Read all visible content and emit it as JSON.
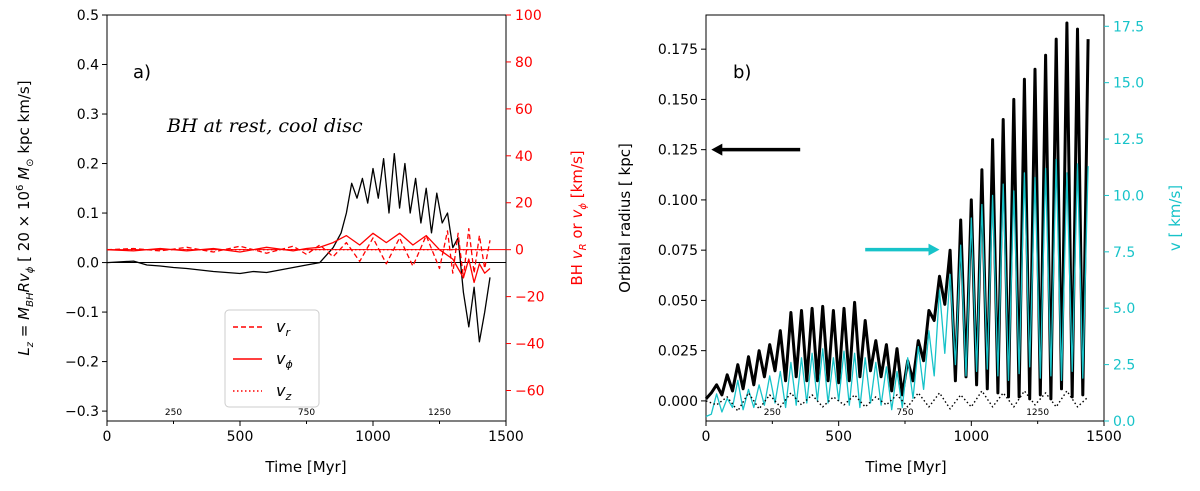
{
  "chart_data": [
    {
      "panel_label": "a)",
      "type": "line",
      "annotation": "BH at rest, cool disc",
      "xlabel": "Time [Myr]",
      "ylabel_left": "L_z = M_BH R v_ϕ [ 20 × 10^6 M_⊙ kpc km/s]",
      "ylabel_right": "BH v_R or v_ϕ [km/s]",
      "xlim": [
        0,
        1500
      ],
      "ylim_left": [
        -0.32,
        0.5
      ],
      "ylim_right": [
        -73,
        100
      ],
      "xticks_major": [
        "0",
        "500",
        "1000",
        "1500"
      ],
      "xticks_minor": [
        "250",
        "750",
        "1250"
      ],
      "yticks_left": [
        "−0.3",
        "−0.2",
        "−0.1",
        "0.0",
        "0.1",
        "0.2",
        "0.3",
        "0.4",
        "0.5"
      ],
      "yticks_right": [
        "−60",
        "−40",
        "−20",
        "0",
        "20",
        "40",
        "60",
        "80",
        "100"
      ],
      "legend": {
        "placement": "lower-center",
        "entries": [
          {
            "label": "v_r",
            "style": "dashed"
          },
          {
            "label": "v_ϕ",
            "style": "solid"
          },
          {
            "label": "v_z",
            "style": "dotted"
          }
        ]
      },
      "series": [
        {
          "name": "L_z",
          "axis": "left",
          "color": "#000000",
          "style": "solid",
          "x": [
            0,
            100,
            150,
            200,
            250,
            300,
            350,
            400,
            450,
            500,
            550,
            600,
            650,
            700,
            750,
            800,
            850,
            880,
            900,
            920,
            940,
            960,
            980,
            1000,
            1020,
            1040,
            1060,
            1080,
            1100,
            1120,
            1140,
            1160,
            1180,
            1200,
            1220,
            1240,
            1260,
            1280,
            1300,
            1320,
            1340,
            1360,
            1380,
            1400,
            1420,
            1440
          ],
          "y": [
            0,
            0.003,
            -0.005,
            -0.007,
            -0.01,
            -0.012,
            -0.015,
            -0.018,
            -0.02,
            -0.022,
            -0.018,
            -0.02,
            -0.015,
            -0.01,
            -0.005,
            0,
            0.03,
            0.06,
            0.1,
            0.16,
            0.13,
            0.17,
            0.12,
            0.19,
            0.13,
            0.21,
            0.1,
            0.22,
            0.11,
            0.2,
            0.1,
            0.17,
            0.08,
            0.15,
            0.06,
            0.14,
            0.08,
            0.1,
            0.03,
            0.05,
            -0.06,
            -0.13,
            -0.05,
            -0.16,
            -0.1,
            -0.03
          ]
        },
        {
          "name": "v_r",
          "axis": "right",
          "color": "#ff0000",
          "style": "dashed",
          "x": [
            0,
            100,
            200,
            300,
            400,
            500,
            600,
            700,
            750,
            800,
            850,
            900,
            950,
            1000,
            1050,
            1100,
            1150,
            1200,
            1250,
            1280,
            1300,
            1320,
            1340,
            1360,
            1380,
            1400,
            1420,
            1440
          ],
          "y": [
            0,
            0.5,
            -0.5,
            1,
            -1,
            1.5,
            -1.5,
            1.5,
            -2,
            2,
            -3,
            3,
            -5,
            5,
            -6,
            5,
            -7,
            6,
            -8,
            8,
            -10,
            7,
            -12,
            9,
            -10,
            6,
            -8,
            4
          ]
        },
        {
          "name": "v_ϕ",
          "axis": "right",
          "color": "#ff0000",
          "style": "solid",
          "x": [
            0,
            100,
            200,
            300,
            400,
            500,
            600,
            700,
            750,
            800,
            850,
            900,
            950,
            1000,
            1050,
            1100,
            1150,
            1200,
            1250,
            1300,
            1320,
            1340,
            1360,
            1380,
            1400,
            1420,
            1440
          ],
          "y": [
            0,
            -0.5,
            0.5,
            -0.5,
            0.5,
            -1,
            1,
            -0.5,
            0.5,
            1,
            3,
            6,
            2,
            7,
            3,
            7,
            2,
            6,
            0,
            -4,
            -8,
            -12,
            -4,
            -14,
            -6,
            -10,
            -8
          ]
        },
        {
          "name": "v_z",
          "axis": "right",
          "color": "#ff0000",
          "style": "dotted",
          "x": [
            0,
            1440
          ],
          "y": [
            0,
            0
          ]
        }
      ]
    },
    {
      "panel_label": "b)",
      "type": "line",
      "xlabel": "Time [Myr]",
      "ylabel_left": "Orbital radius [ kpc]",
      "ylabel_right": "v [ km/s]",
      "xlim": [
        0,
        1500
      ],
      "ylim_left": [
        -0.01,
        0.192
      ],
      "ylim_right": [
        0,
        18
      ],
      "xticks_major": [
        "0",
        "500",
        "1000",
        "1500"
      ],
      "xticks_minor": [
        "250",
        "750",
        "1250"
      ],
      "yticks_left": [
        "0.000",
        "0.025",
        "0.050",
        "0.075",
        "0.100",
        "0.125",
        "0.150",
        "0.175"
      ],
      "yticks_right": [
        "0.0",
        "2.5",
        "5.0",
        "7.5",
        "10.0",
        "12.5",
        "15.0",
        "17.5"
      ],
      "arrows": [
        {
          "color": "#000000",
          "direction": "left",
          "from": [
            355,
            0.125
          ],
          "to": [
            20,
            0.125
          ]
        },
        {
          "color": "#17c3c9",
          "direction": "right",
          "from": [
            600,
            7.6
          ],
          "to": [
            880,
            7.6
          ]
        }
      ],
      "series": [
        {
          "name": "radius",
          "axis": "left",
          "color": "#000000",
          "style": "solid-thick",
          "x": [
            0,
            20,
            40,
            60,
            80,
            100,
            120,
            140,
            160,
            180,
            200,
            220,
            240,
            260,
            280,
            300,
            320,
            340,
            360,
            380,
            400,
            420,
            440,
            460,
            480,
            500,
            520,
            540,
            560,
            580,
            600,
            620,
            640,
            660,
            680,
            700,
            720,
            740,
            760,
            780,
            800,
            820,
            840,
            860,
            880,
            900,
            920,
            940,
            960,
            980,
            1000,
            1020,
            1040,
            1060,
            1080,
            1100,
            1120,
            1140,
            1160,
            1180,
            1200,
            1220,
            1240,
            1260,
            1280,
            1300,
            1320,
            1340,
            1360,
            1380,
            1400,
            1420,
            1440
          ],
          "y": [
            0.001,
            0.004,
            0.008,
            0.003,
            0.013,
            0.005,
            0.018,
            0.006,
            0.022,
            0.008,
            0.025,
            0.012,
            0.028,
            0.015,
            0.035,
            0.01,
            0.044,
            0.012,
            0.045,
            0.01,
            0.046,
            0.01,
            0.047,
            0.01,
            0.045,
            0.009,
            0.046,
            0.01,
            0.049,
            0.012,
            0.04,
            0.015,
            0.03,
            0.012,
            0.028,
            0.005,
            0.026,
            0.003,
            0.02,
            0.01,
            0.03,
            0.02,
            0.045,
            0.04,
            0.062,
            0.048,
            0.075,
            0.01,
            0.09,
            0.012,
            0.1,
            0.008,
            0.115,
            0.006,
            0.13,
            0.004,
            0.14,
            0.002,
            0.15,
            0.002,
            0.16,
            0.001,
            0.165,
            0.003,
            0.172,
            0.001,
            0.18,
            0.006,
            0.188,
            0.002,
            0.185,
            0.003,
            0.18
          ]
        },
        {
          "name": "v",
          "axis": "right",
          "color": "#17c3c9",
          "style": "solid",
          "x": [
            0,
            20,
            40,
            60,
            80,
            100,
            120,
            140,
            160,
            180,
            200,
            220,
            240,
            260,
            280,
            300,
            320,
            340,
            360,
            380,
            400,
            420,
            440,
            460,
            480,
            500,
            520,
            540,
            560,
            580,
            600,
            620,
            640,
            660,
            680,
            700,
            720,
            740,
            760,
            780,
            800,
            820,
            840,
            860,
            880,
            900,
            920,
            940,
            960,
            980,
            1000,
            1020,
            1040,
            1060,
            1080,
            1100,
            1120,
            1140,
            1160,
            1180,
            1200,
            1220,
            1240,
            1260,
            1280,
            1300,
            1320,
            1340,
            1360,
            1380,
            1400,
            1420,
            1440
          ],
          "y": [
            0.2,
            0.3,
            1.2,
            0.4,
            1.0,
            0.6,
            1.8,
            0.5,
            1.4,
            0.6,
            1.6,
            0.7,
            2.0,
            0.8,
            2.2,
            0.6,
            2.6,
            0.7,
            2.8,
            0.8,
            3.0,
            0.9,
            3.2,
            0.8,
            2.8,
            0.9,
            3.1,
            0.7,
            3.0,
            0.6,
            2.8,
            0.8,
            2.6,
            0.7,
            2.4,
            0.5,
            2.2,
            0.6,
            2.8,
            1.0,
            3.3,
            1.4,
            4.0,
            2.0,
            5.8,
            3.0,
            6.5,
            2.5,
            7.8,
            2.0,
            9.0,
            2.2,
            9.6,
            2.3,
            10.0,
            2.0,
            10.5,
            1.8,
            10.2,
            2.1,
            11.0,
            2.4,
            10.8,
            1.9,
            11.2,
            2.0,
            11.6,
            1.8,
            11.0,
            2.2,
            11.4,
            1.9,
            11.3
          ]
        },
        {
          "name": "z",
          "axis": "left",
          "color": "#000000",
          "style": "dotted",
          "x": [
            0,
            40,
            80,
            120,
            160,
            200,
            240,
            280,
            320,
            360,
            400,
            440,
            480,
            520,
            560,
            600,
            640,
            680,
            720,
            760,
            800,
            840,
            880,
            920,
            960,
            1000,
            1040,
            1080,
            1120,
            1160,
            1200,
            1240,
            1280,
            1320,
            1360,
            1400,
            1440
          ],
          "y": [
            0,
            -0.002,
            0.002,
            -0.005,
            0.004,
            -0.004,
            0.003,
            -0.003,
            0.004,
            -0.002,
            0.003,
            -0.003,
            0.002,
            -0.002,
            0.003,
            -0.003,
            0.002,
            -0.002,
            0.003,
            -0.003,
            0.004,
            -0.003,
            0.004,
            -0.004,
            0.003,
            -0.003,
            0.005,
            -0.003,
            0.004,
            -0.003,
            0.005,
            -0.002,
            0.004,
            -0.003,
            0.005,
            -0.003,
            0.002
          ]
        }
      ]
    }
  ]
}
